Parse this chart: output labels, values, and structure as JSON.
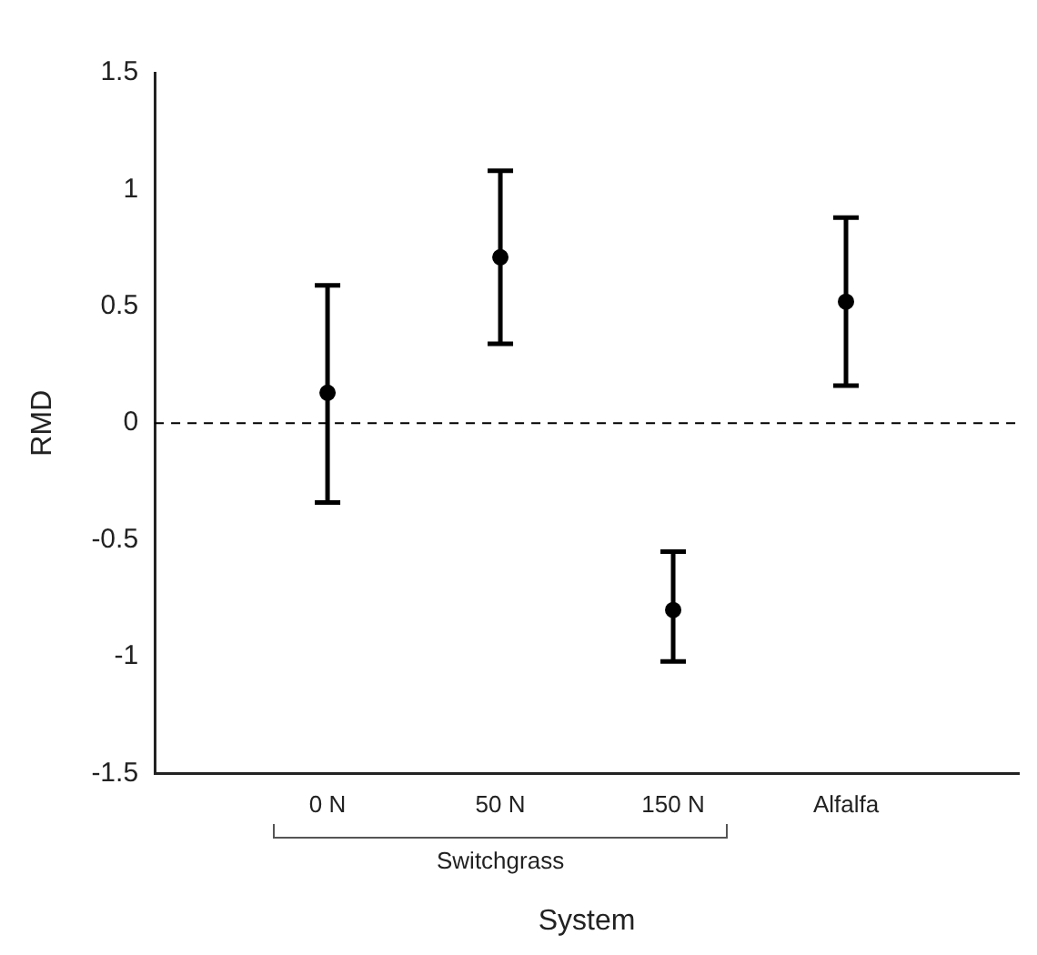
{
  "chart_data": {
    "type": "scatter",
    "xlabel": "System",
    "ylabel": "RMD",
    "categories": [
      null,
      "0 N",
      "50 N",
      "150 N",
      "Alfalfa",
      null
    ],
    "series": [
      {
        "color": "#000000",
        "values": [
          null,
          0.13,
          0.71,
          -0.8,
          0.52,
          null
        ],
        "errors": [
          null,
          [
            -0.34,
            0.59
          ],
          [
            0.34,
            1.08
          ],
          [
            -1.02,
            -0.55
          ],
          [
            0.16,
            0.88
          ],
          null
        ]
      }
    ],
    "ylim": [
      -1.5,
      1.5
    ],
    "yticks": [
      {
        "value": -1.5,
        "label": "-1.5"
      },
      {
        "value": -1,
        "label": "-1"
      },
      {
        "value": -0.5,
        "label": "-0.5"
      },
      0,
      0.5,
      1,
      1.5
    ],
    "ref_lines": [
      {
        "axis": "y",
        "value": 0,
        "color": "#000000",
        "line_style": "dashed"
      }
    ],
    "annotations": [
      "Switchgrass"
    ],
    "marker": "circle",
    "grid": false,
    "legend": false
  }
}
